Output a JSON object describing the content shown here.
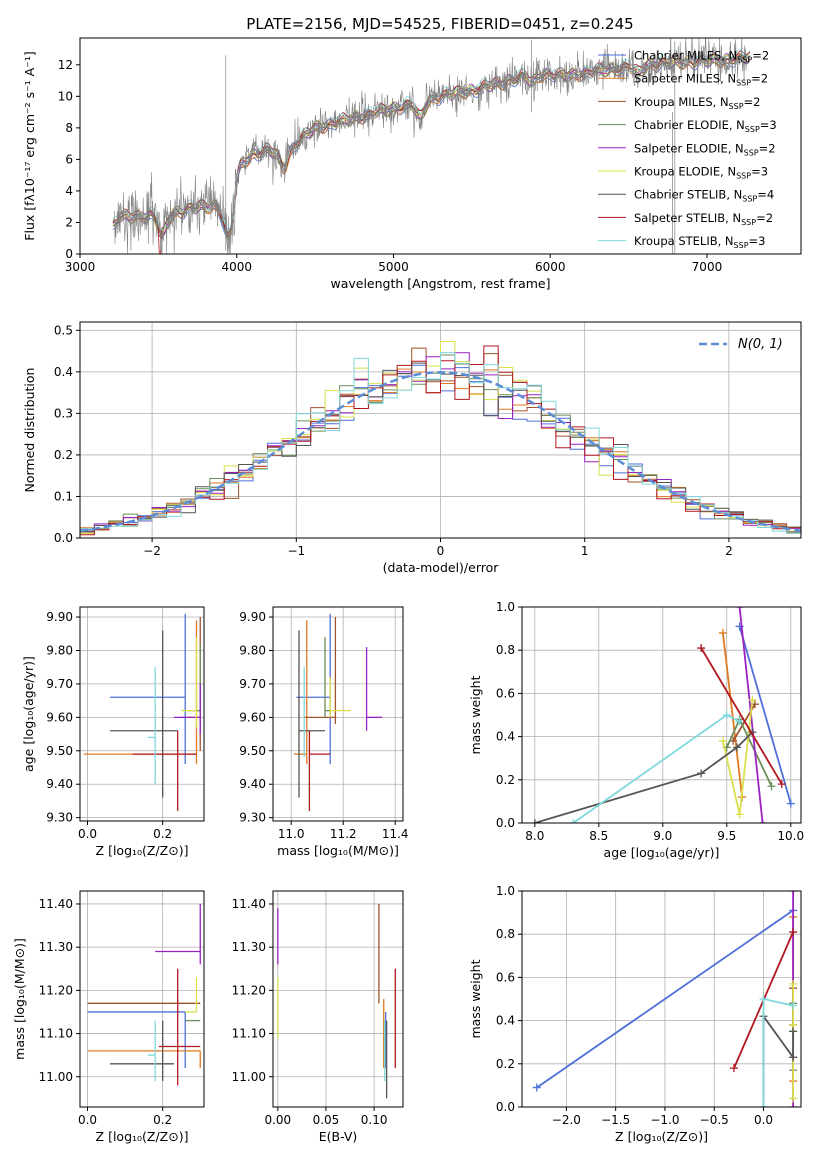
{
  "figure": {
    "title": "PLATE=2156, MJD=54525, FIBERID=0451, z=0.245"
  },
  "colors": {
    "Chabrier MILES": "#4e6fd9",
    "Salpeter MILES": "#e07a22",
    "Kroupa MILES": "#a0522d",
    "Chabrier ELODIE": "#6b8e5a",
    "Salpeter ELODIE": "#9b22c2",
    "Kroupa ELODIE": "#d9e04a",
    "Chabrier STELIB": "#555555",
    "Salpeter STELIB": "#b0171f",
    "Kroupa STELIB": "#7fd8dc",
    "data": "#808080",
    "gauss": "#5b8ed6"
  },
  "chart_data": [
    {
      "id": "spectrum",
      "type": "line",
      "xlabel": "wavelength [Angstrom, rest frame]",
      "ylabel": "Flux [fλ10⁻¹⁷ erg cm⁻² s⁻¹ A⁻¹]",
      "xlim": [
        3000,
        7600
      ],
      "ylim": [
        0,
        13.7
      ],
      "xticks": [
        3000,
        4000,
        5000,
        6000,
        7000
      ],
      "yticks": [
        0,
        2,
        4,
        6,
        8,
        10,
        12
      ],
      "legend_position": "right",
      "legend": [
        {
          "model": "Chabrier MILES",
          "label": "Chabrier MILES, N",
          "sub": "SSP",
          "tail": "=2"
        },
        {
          "model": "Salpeter MILES",
          "label": "Salpeter MILES, N",
          "sub": "SSP",
          "tail": "=2"
        },
        {
          "model": "Kroupa MILES",
          "label": "Kroupa MILES, N",
          "sub": "SSP",
          "tail": "=2"
        },
        {
          "model": "Chabrier ELODIE",
          "label": "Chabrier ELODIE, N",
          "sub": "SSP",
          "tail": "=3"
        },
        {
          "model": "Salpeter ELODIE",
          "label": "Salpeter ELODIE, N",
          "sub": "SSP",
          "tail": "=2"
        },
        {
          "model": "Kroupa ELODIE",
          "label": "Kroupa ELODIE, N",
          "sub": "SSP",
          "tail": "=3"
        },
        {
          "model": "Chabrier STELIB",
          "label": "Chabrier STELIB, N",
          "sub": "SSP",
          "tail": "=4"
        },
        {
          "model": "Salpeter STELIB",
          "label": "Salpeter STELIB, N",
          "sub": "SSP",
          "tail": "=2"
        },
        {
          "model": "Kroupa STELIB",
          "label": "Kroupa STELIB, N",
          "sub": "SSP",
          "tail": "=3"
        }
      ],
      "continuum": [
        [
          3200,
          0
        ],
        [
          3210,
          1.8
        ],
        [
          3250,
          2.3
        ],
        [
          3350,
          2.4
        ],
        [
          3450,
          2.5
        ],
        [
          3520,
          2.3
        ],
        [
          3600,
          2.6
        ],
        [
          3700,
          2.9
        ],
        [
          3800,
          3.0
        ],
        [
          3900,
          3.1
        ],
        [
          3950,
          3.3
        ],
        [
          4000,
          5.5
        ],
        [
          4100,
          6.3
        ],
        [
          4200,
          6.6
        ],
        [
          4300,
          6.2
        ],
        [
          4400,
          7.2
        ],
        [
          4500,
          8.0
        ],
        [
          4700,
          8.5
        ],
        [
          4900,
          9.0
        ],
        [
          5100,
          9.5
        ],
        [
          5300,
          10.0
        ],
        [
          5500,
          10.4
        ],
        [
          5700,
          10.9
        ],
        [
          5900,
          11.5
        ],
        [
          6100,
          11.3
        ],
        [
          6300,
          11.6
        ],
        [
          6500,
          11.9
        ],
        [
          6700,
          12.1
        ],
        [
          6900,
          12.2
        ],
        [
          7100,
          12.3
        ],
        [
          7300,
          12.5
        ]
      ],
      "features": [
        [
          3525,
          0.0
        ],
        [
          3935,
          0.4
        ],
        [
          3970,
          0.8
        ],
        [
          4300,
          4.8
        ],
        [
          5170,
          7.6
        ],
        [
          5890,
          10.3
        ],
        [
          6560,
          11.0
        ]
      ]
    },
    {
      "id": "residuals",
      "type": "histogram",
      "xlabel": "(data-model)/error",
      "ylabel": "Normed distribution",
      "xlim": [
        -2.5,
        2.5
      ],
      "ylim": [
        0,
        0.52
      ],
      "xticks": [
        -2,
        -1,
        0,
        1,
        2
      ],
      "yticks": [
        0.0,
        0.1,
        0.2,
        0.3,
        0.4,
        0.5
      ],
      "bin_width": 0.1,
      "gauss_label": "N(0, 1)",
      "legend_position": "top-right"
    },
    {
      "id": "age-vs-Z",
      "type": "scatter",
      "xlabel": "Z [log₁₀(Z/Z⊙)]",
      "ylabel": "age  [log₁₀(age/yr)]",
      "xlim": [
        -0.02,
        0.31
      ],
      "ylim": [
        9.29,
        9.93
      ],
      "xticks": [
        0.0,
        0.2
      ],
      "yticks": [
        9.3,
        9.4,
        9.5,
        9.6,
        9.7,
        9.8,
        9.9
      ],
      "points": [
        {
          "model": "Chabrier MILES",
          "x": 0.26,
          "xerr": [
            0.2,
            0.0
          ],
          "y": 9.66,
          "yerr": [
            0.2,
            0.25
          ]
        },
        {
          "model": "Salpeter MILES",
          "x": 0.29,
          "xerr": [
            0.3,
            0.0
          ],
          "y": 9.49,
          "yerr": [
            0.03,
            0.4
          ]
        },
        {
          "model": "Kroupa MILES",
          "x": 0.3,
          "xerr": [
            0.05,
            0.0
          ],
          "y": 9.6,
          "yerr": [
            0.1,
            0.3
          ]
        },
        {
          "model": "Chabrier ELODIE",
          "x": 0.3,
          "xerr": [
            0.03,
            0.0
          ],
          "y": 9.62,
          "yerr": [
            0.05,
            0.2
          ]
        },
        {
          "model": "Salpeter ELODIE",
          "x": 0.3,
          "xerr": [
            0.07,
            0.0
          ],
          "y": 9.6,
          "yerr": [
            0.05,
            0.1
          ]
        },
        {
          "model": "Kroupa ELODIE",
          "x": 0.29,
          "xerr": [
            0.04,
            0.0
          ],
          "y": 9.62,
          "yerr": [
            0.05,
            0.22
          ]
        },
        {
          "model": "Chabrier STELIB",
          "x": 0.2,
          "xerr": [
            0.14,
            0.04
          ],
          "y": 9.56,
          "yerr": [
            0.2,
            0.3
          ]
        },
        {
          "model": "Salpeter STELIB",
          "x": 0.24,
          "xerr": [
            0.12,
            0.05
          ],
          "y": 9.49,
          "yerr": [
            0.17,
            0.07
          ]
        },
        {
          "model": "Kroupa STELIB",
          "x": 0.18,
          "xerr": [
            0.02,
            0.0
          ],
          "y": 9.54,
          "yerr": [
            0.14,
            0.21
          ]
        }
      ]
    },
    {
      "id": "age-vs-mass",
      "type": "scatter",
      "xlabel": "mass [log₁₀(M/M⊙)]",
      "ylabel": "",
      "xlim": [
        10.93,
        11.43
      ],
      "ylim": [
        9.29,
        9.93
      ],
      "xticks": [
        11.0,
        11.2,
        11.4
      ],
      "yticks": [
        9.3,
        9.4,
        9.5,
        9.6,
        9.7,
        9.8,
        9.9
      ],
      "points": [
        {
          "model": "Chabrier MILES",
          "x": 11.15,
          "xerr": [
            0.13,
            0.0
          ],
          "y": 9.66,
          "yerr": [
            0.2,
            0.25
          ]
        },
        {
          "model": "Salpeter MILES",
          "x": 11.06,
          "xerr": [
            0.05,
            0.0
          ],
          "y": 9.49,
          "yerr": [
            0.03,
            0.4
          ]
        },
        {
          "model": "Kroupa MILES",
          "x": 11.17,
          "xerr": [
            0.12,
            0.0
          ],
          "y": 9.6,
          "yerr": [
            0.02,
            0.3
          ]
        },
        {
          "model": "Chabrier ELODIE",
          "x": 11.13,
          "xerr": [
            0.0,
            0.02
          ],
          "y": 9.62,
          "yerr": [
            0.02,
            0.22
          ]
        },
        {
          "model": "Salpeter ELODIE",
          "x": 11.29,
          "xerr": [
            0.0,
            0.06
          ],
          "y": 9.6,
          "yerr": [
            0.04,
            0.21
          ]
        },
        {
          "model": "Kroupa ELODIE",
          "x": 11.15,
          "xerr": [
            0.0,
            0.08
          ],
          "y": 9.62,
          "yerr": [
            0.02,
            0.1
          ]
        },
        {
          "model": "Chabrier STELIB",
          "x": 11.03,
          "xerr": [
            0.0,
            0.1
          ],
          "y": 9.56,
          "yerr": [
            0.2,
            0.3
          ]
        },
        {
          "model": "Salpeter STELIB",
          "x": 11.07,
          "xerr": [
            0.0,
            0.08
          ],
          "y": 9.49,
          "yerr": [
            0.17,
            0.07
          ]
        },
        {
          "model": "Kroupa STELIB",
          "x": 11.05,
          "xerr": [
            0.0,
            0.0
          ],
          "y": 9.54,
          "yerr": [
            0.06,
            0.21
          ]
        }
      ]
    },
    {
      "id": "weight-vs-age",
      "type": "line",
      "xlabel": "age  [log₁₀(age/yr)]",
      "ylabel": "mass weight",
      "xlim": [
        7.9,
        10.08
      ],
      "ylim": [
        0,
        1.0
      ],
      "xticks": [
        8.0,
        8.5,
        9.0,
        9.5,
        10.0
      ],
      "yticks": [
        0.0,
        0.2,
        0.4,
        0.6,
        0.8,
        1.0
      ],
      "series": [
        {
          "model": "Chabrier MILES",
          "x": [
            9.6,
            10.0
          ],
          "y": [
            0.91,
            0.09
          ]
        },
        {
          "model": "Salpeter MILES",
          "x": [
            9.47,
            9.62
          ],
          "y": [
            0.88,
            0.12
          ]
        },
        {
          "model": "Kroupa MILES",
          "x": [
            9.55,
            9.72
          ],
          "y": [
            0.38,
            0.55
          ]
        },
        {
          "model": "Chabrier ELODIE",
          "x": [
            9.5,
            9.6,
            9.85
          ],
          "y": [
            0.35,
            0.48,
            0.17
          ]
        },
        {
          "model": "Salpeter ELODIE",
          "x": [
            9.6,
            9.78
          ],
          "y": [
            1.0,
            0.0
          ]
        },
        {
          "model": "Kroupa ELODIE",
          "x": [
            9.47,
            9.6,
            9.7
          ],
          "y": [
            0.38,
            0.04,
            0.57
          ]
        },
        {
          "model": "Chabrier STELIB",
          "x": [
            8.0,
            9.3,
            9.58,
            9.7
          ],
          "y": [
            0.0,
            0.23,
            0.35,
            0.42
          ]
        },
        {
          "model": "Salpeter STELIB",
          "x": [
            9.3,
            9.93
          ],
          "y": [
            0.81,
            0.18
          ]
        },
        {
          "model": "Kroupa STELIB",
          "x": [
            8.3,
            9.5,
            9.6
          ],
          "y": [
            0.0,
            0.5,
            0.47
          ]
        }
      ]
    },
    {
      "id": "mass-vs-Z",
      "type": "scatter",
      "xlabel": "Z [log₁₀(Z/Z⊙)]",
      "ylabel": "mass [log₁₀(M/M⊙)]",
      "xlim": [
        -0.02,
        0.31
      ],
      "ylim": [
        10.93,
        11.43
      ],
      "xticks": [
        0.0,
        0.2
      ],
      "yticks": [
        11.0,
        11.1,
        11.2,
        11.3,
        11.4
      ],
      "points": [
        {
          "model": "Chabrier MILES",
          "x": 0.26,
          "xerr": [
            0.26,
            0.0
          ],
          "y": 11.15,
          "yerr": [
            0.13,
            0.0
          ]
        },
        {
          "model": "Salpeter MILES",
          "x": 0.3,
          "xerr": [
            0.3,
            0.0
          ],
          "y": 11.06,
          "yerr": [
            0.04,
            0.0
          ]
        },
        {
          "model": "Kroupa MILES",
          "x": 0.3,
          "xerr": [
            0.3,
            0.0
          ],
          "y": 11.17,
          "yerr": [
            0.0,
            0.0
          ]
        },
        {
          "model": "Chabrier ELODIE",
          "x": 0.3,
          "xerr": [
            0.04,
            0.0
          ],
          "y": 11.13,
          "yerr": [
            0.0,
            0.0
          ]
        },
        {
          "model": "Salpeter ELODIE",
          "x": 0.3,
          "xerr": [
            0.12,
            0.0
          ],
          "y": 11.29,
          "yerr": [
            0.03,
            0.11
          ]
        },
        {
          "model": "Kroupa ELODIE",
          "x": 0.29,
          "xerr": [
            0.03,
            0.0
          ],
          "y": 11.15,
          "yerr": [
            0.0,
            0.08
          ]
        },
        {
          "model": "Chabrier STELIB",
          "x": 0.2,
          "xerr": [
            0.14,
            0.03
          ],
          "y": 11.03,
          "yerr": [
            0.04,
            0.1
          ]
        },
        {
          "model": "Salpeter STELIB",
          "x": 0.24,
          "xerr": [
            0.05,
            0.06
          ],
          "y": 11.07,
          "yerr": [
            0.09,
            0.18
          ]
        },
        {
          "model": "Kroupa STELIB",
          "x": 0.18,
          "xerr": [
            0.02,
            0.0
          ],
          "y": 11.05,
          "yerr": [
            0.06,
            0.08
          ]
        }
      ]
    },
    {
      "id": "mass-vs-ebv",
      "type": "scatter",
      "xlabel": "E(B-V)",
      "ylabel": "",
      "xlim": [
        -0.005,
        0.13
      ],
      "ylim": [
        10.93,
        11.43
      ],
      "xticks": [
        0.0,
        0.05,
        0.1
      ],
      "yticks": [
        11.0,
        11.1,
        11.2,
        11.3,
        11.4
      ],
      "points": [
        {
          "model": "Chabrier MILES",
          "x": 0.112,
          "y": 11.15,
          "yerr": [
            0.13,
            0.0
          ]
        },
        {
          "model": "Salpeter MILES",
          "x": 0.11,
          "y": 11.06,
          "yerr": [
            0.04,
            0.12
          ]
        },
        {
          "model": "Kroupa MILES",
          "x": 0.105,
          "y": 11.17,
          "yerr": [
            0.0,
            0.23
          ]
        },
        {
          "model": "Chabrier ELODIE",
          "x": 0.11,
          "y": 11.13,
          "yerr": [
            0.0,
            0.0
          ]
        },
        {
          "model": "Salpeter ELODIE",
          "x": 0.0,
          "y": 11.29,
          "yerr": [
            0.03,
            0.1
          ]
        },
        {
          "model": "Kroupa ELODIE",
          "x": 0.0,
          "y": 11.15,
          "yerr": [
            0.06,
            0.08
          ]
        },
        {
          "model": "Chabrier STELIB",
          "x": 0.113,
          "y": 11.03,
          "yerr": [
            0.08,
            0.1
          ]
        },
        {
          "model": "Salpeter STELIB",
          "x": 0.122,
          "y": 11.07,
          "yerr": [
            0.05,
            0.18
          ]
        },
        {
          "model": "Kroupa STELIB",
          "x": 0.111,
          "y": 11.05,
          "yerr": [
            0.06,
            0.08
          ]
        }
      ]
    },
    {
      "id": "weight-vs-Z",
      "type": "line",
      "xlabel": "Z [log₁₀(Z/Z⊙)]",
      "ylabel": "mass weight",
      "xlim": [
        -2.45,
        0.38
      ],
      "ylim": [
        0,
        1.0
      ],
      "xticks": [
        -2.0,
        -1.5,
        -1.0,
        -0.5,
        0.0
      ],
      "yticks": [
        0.0,
        0.2,
        0.4,
        0.6,
        0.8,
        1.0
      ],
      "series": [
        {
          "model": "Chabrier MILES",
          "x": [
            -2.3,
            0.3
          ],
          "y": [
            0.09,
            0.91
          ]
        },
        {
          "model": "Salpeter MILES",
          "x": [
            0.3,
            0.3
          ],
          "y": [
            0.12,
            0.88
          ]
        },
        {
          "model": "Kroupa MILES",
          "x": [
            0.3,
            0.3
          ],
          "y": [
            0.38,
            0.55
          ]
        },
        {
          "model": "Chabrier ELODIE",
          "x": [
            0.3,
            0.3,
            0.3
          ],
          "y": [
            0.17,
            0.35,
            0.48
          ]
        },
        {
          "model": "Salpeter ELODIE",
          "x": [
            0.3,
            0.3
          ],
          "y": [
            0.0,
            1.0
          ]
        },
        {
          "model": "Kroupa ELODIE",
          "x": [
            0.3,
            0.3,
            0.3
          ],
          "y": [
            0.04,
            0.38,
            0.57
          ]
        },
        {
          "model": "Chabrier STELIB",
          "x": [
            0.0,
            0.0,
            0.3,
            0.3
          ],
          "y": [
            0.0,
            0.42,
            0.23,
            0.35
          ]
        },
        {
          "model": "Salpeter STELIB",
          "x": [
            -0.3,
            0.3
          ],
          "y": [
            0.18,
            0.81
          ]
        },
        {
          "model": "Kroupa STELIB",
          "x": [
            0.0,
            0.0,
            0.3
          ],
          "y": [
            0.0,
            0.5,
            0.47
          ]
        }
      ]
    }
  ]
}
